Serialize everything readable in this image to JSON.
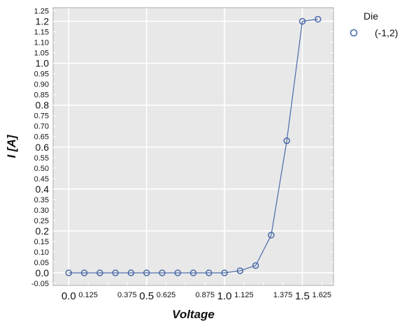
{
  "chart_data": {
    "type": "line",
    "xlabel": "Voltage",
    "ylabel": "I [A]",
    "xlim": [
      -0.1,
      1.7
    ],
    "ylim": [
      -0.06,
      1.265
    ],
    "grid": true,
    "legend": {
      "title": "Die",
      "placement": "outside-right",
      "entries": [
        "(-1,2)"
      ]
    },
    "x_major_ticks": [
      {
        "value": 0.0,
        "label": "0.0"
      },
      {
        "value": 0.5,
        "label": "0.5"
      },
      {
        "value": 1.0,
        "label": "1.0"
      },
      {
        "value": 1.5,
        "label": "1.5"
      }
    ],
    "x_minor_ticks": [
      {
        "value": 0.125,
        "label": "0.125"
      },
      {
        "value": 0.25,
        "label": ""
      },
      {
        "value": 0.375,
        "label": "0.375"
      },
      {
        "value": 0.625,
        "label": "0.625"
      },
      {
        "value": 0.75,
        "label": ""
      },
      {
        "value": 0.875,
        "label": "0.875"
      },
      {
        "value": 1.125,
        "label": "1.125"
      },
      {
        "value": 1.25,
        "label": ""
      },
      {
        "value": 1.375,
        "label": "1.375"
      },
      {
        "value": 1.625,
        "label": "1.625"
      }
    ],
    "y_major_ticks": [
      {
        "value": 0.0,
        "label": "0.0"
      },
      {
        "value": 0.2,
        "label": "0.2"
      },
      {
        "value": 0.4,
        "label": "0.4"
      },
      {
        "value": 0.6,
        "label": "0.6"
      },
      {
        "value": 0.8,
        "label": "0.8"
      },
      {
        "value": 1.0,
        "label": "1.0"
      },
      {
        "value": 1.2,
        "label": "1.2"
      }
    ],
    "y_minor_ticks": [
      {
        "value": -0.05,
        "label": "-0.05"
      },
      {
        "value": 0.05,
        "label": "0.05"
      },
      {
        "value": 0.1,
        "label": "0.10"
      },
      {
        "value": 0.15,
        "label": "0.15"
      },
      {
        "value": 0.25,
        "label": "0.25"
      },
      {
        "value": 0.3,
        "label": "0.30"
      },
      {
        "value": 0.35,
        "label": "0.35"
      },
      {
        "value": 0.45,
        "label": "0.45"
      },
      {
        "value": 0.5,
        "label": "0.50"
      },
      {
        "value": 0.55,
        "label": "0.55"
      },
      {
        "value": 0.65,
        "label": "0.65"
      },
      {
        "value": 0.7,
        "label": "0.70"
      },
      {
        "value": 0.75,
        "label": "0.75"
      },
      {
        "value": 0.85,
        "label": "0.85"
      },
      {
        "value": 0.9,
        "label": "0.90"
      },
      {
        "value": 0.95,
        "label": "0.95"
      },
      {
        "value": 1.05,
        "label": "1.05"
      },
      {
        "value": 1.1,
        "label": "1.10"
      },
      {
        "value": 1.15,
        "label": "1.15"
      },
      {
        "value": 1.25,
        "label": "1.25"
      }
    ],
    "series": [
      {
        "name": "(-1,2)",
        "color": "#4a6aa8",
        "marker": "circle-open",
        "x": [
          0.0,
          0.1,
          0.2,
          0.3,
          0.4,
          0.5,
          0.6,
          0.7,
          0.8,
          0.9,
          1.0,
          1.1,
          1.2,
          1.3,
          1.4,
          1.5,
          1.6
        ],
        "y": [
          0.0,
          0.0,
          0.0,
          0.0,
          0.0,
          0.0,
          0.0,
          0.0,
          0.0,
          0.0,
          0.0,
          0.01,
          0.035,
          0.18,
          0.63,
          1.2,
          1.21
        ]
      }
    ]
  }
}
